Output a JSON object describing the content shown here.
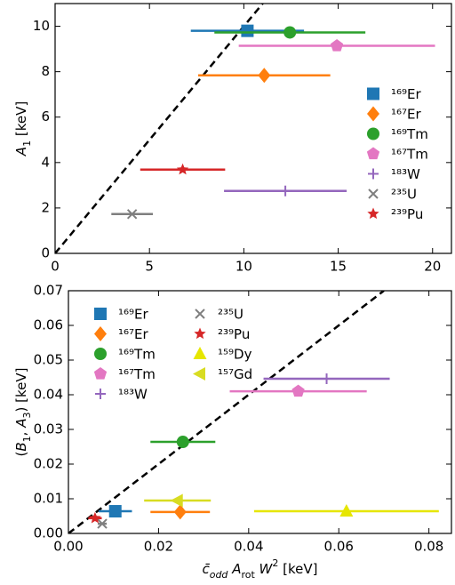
{
  "chart_data": [
    {
      "type": "errorbar-scatter",
      "xlabel": [
        {
          "text": "c̄",
          "style": "italic"
        },
        {
          "text": "odd",
          "style": "sub-italic"
        },
        {
          "text": " A",
          "style": "italic"
        },
        {
          "text": "rot",
          "style": "sub"
        },
        {
          "text": " W",
          "style": "italic"
        },
        {
          "text": "2",
          "style": "sup"
        },
        {
          "text": " [keV]"
        }
      ],
      "ylabel": [
        {
          "text": "A",
          "style": "italic"
        },
        {
          "text": "1",
          "style": "sub"
        },
        {
          "text": " [keV]"
        }
      ],
      "xlim": [
        0,
        21
      ],
      "ylim": [
        0,
        11
      ],
      "xticks": [
        0,
        5,
        10,
        15,
        20
      ],
      "yticks": [
        0,
        2,
        4,
        6,
        8,
        10
      ],
      "show_xlabel": false,
      "reference_line": {
        "x": [
          0,
          11
        ],
        "y": [
          0,
          11
        ]
      },
      "legend_loc": "lower right",
      "legend_ncol": 1,
      "series": [
        {
          "name": "¹⁶⁹Er",
          "color": "#1f77b4",
          "marker": "square",
          "x": [
            10.19
          ],
          "values": [
            9.8
          ],
          "xerr": [
            3.0
          ]
        },
        {
          "name": "¹⁶⁷Er",
          "color": "#ff7f0e",
          "marker": "diamond",
          "x": [
            11.08
          ],
          "values": [
            7.84
          ],
          "xerr": [
            3.5
          ]
        },
        {
          "name": "¹⁶⁹Tm",
          "color": "#2ca02c",
          "marker": "circle",
          "x": [
            12.44
          ],
          "values": [
            9.73
          ],
          "xerr": [
            4.0
          ]
        },
        {
          "name": "¹⁶⁷Tm",
          "color": "#e377c2",
          "marker": "pentagon",
          "x": [
            14.93
          ],
          "values": [
            9.14
          ],
          "xerr": [
            5.2
          ]
        },
        {
          "name": "¹⁸³W",
          "color": "#9467bd",
          "marker": "plus",
          "x": [
            12.2
          ],
          "values": [
            2.75
          ],
          "xerr": [
            3.25
          ]
        },
        {
          "name": "²³⁵U",
          "color": "#7f7f7f",
          "marker": "x",
          "x": [
            4.08
          ],
          "values": [
            1.73
          ],
          "xerr": [
            1.1
          ]
        },
        {
          "name": "²³⁹Pu",
          "color": "#d62728",
          "marker": "star",
          "x": [
            6.76
          ],
          "values": [
            3.69
          ],
          "xerr": [
            2.25
          ]
        }
      ]
    },
    {
      "type": "errorbar-scatter",
      "xlabel": [
        {
          "text": "c̄",
          "style": "italic"
        },
        {
          "text": "odd",
          "style": "sub-italic"
        },
        {
          "text": " A",
          "style": "italic"
        },
        {
          "text": "rot",
          "style": "sub"
        },
        {
          "text": " W",
          "style": "italic"
        },
        {
          "text": "2",
          "style": "sup"
        },
        {
          "text": " [keV]"
        }
      ],
      "ylabel": [
        {
          "text": "("
        },
        {
          "text": "B",
          "style": "italic"
        },
        {
          "text": "1",
          "style": "sub"
        },
        {
          "text": ", "
        },
        {
          "text": "A",
          "style": "italic"
        },
        {
          "text": "3",
          "style": "sub"
        },
        {
          "text": ") [keV]"
        }
      ],
      "xlim": [
        0,
        0.085
      ],
      "ylim": [
        0,
        0.07
      ],
      "xticks": [
        {
          "value": 0,
          "label": "0.00"
        },
        {
          "value": 0.02,
          "label": "0.02"
        },
        {
          "value": 0.04,
          "label": "0.04"
        },
        {
          "value": 0.06,
          "label": "0.06"
        },
        {
          "value": 0.08,
          "label": "0.08"
        }
      ],
      "yticks": [
        {
          "value": 0,
          "label": "0.00"
        },
        {
          "value": 0.01,
          "label": "0.01"
        },
        {
          "value": 0.02,
          "label": "0.02"
        },
        {
          "value": 0.03,
          "label": "0.03"
        },
        {
          "value": 0.04,
          "label": "0.04"
        },
        {
          "value": 0.05,
          "label": "0.05"
        },
        {
          "value": 0.06,
          "label": "0.06"
        },
        {
          "value": 0.07,
          "label": "0.07"
        }
      ],
      "show_xlabel": true,
      "reference_line": {
        "x": [
          0,
          0.07
        ],
        "y": [
          0,
          0.07
        ]
      },
      "legend_loc": "upper left",
      "legend_ncol": 2,
      "series": [
        {
          "name": "¹⁶⁹Er",
          "color": "#1f77b4",
          "marker": "square",
          "x": [
            0.0104
          ],
          "values": [
            0.0064
          ],
          "xerr": [
            0.0037
          ]
        },
        {
          "name": "¹⁶⁷Er",
          "color": "#ff7f0e",
          "marker": "diamond",
          "x": [
            0.0248
          ],
          "values": [
            0.0062
          ],
          "xerr": [
            0.0066
          ]
        },
        {
          "name": "¹⁶⁹Tm",
          "color": "#2ca02c",
          "marker": "circle",
          "x": [
            0.0254
          ],
          "values": [
            0.0264
          ],
          "xerr": [
            0.0072
          ]
        },
        {
          "name": "¹⁶⁷Tm",
          "color": "#e377c2",
          "marker": "pentagon",
          "x": [
            0.051
          ],
          "values": [
            0.041
          ],
          "xerr": [
            0.0152
          ]
        },
        {
          "name": "¹⁸³W",
          "color": "#9467bd",
          "marker": "plus",
          "x": [
            0.0573
          ],
          "values": [
            0.0446
          ],
          "xerr": [
            0.014
          ]
        },
        {
          "name": "²³⁵U",
          "color": "#7f7f7f",
          "marker": "x",
          "x": [
            0.0075
          ],
          "values": [
            0.0028
          ],
          "xerr": [
            0.001
          ]
        },
        {
          "name": "²³⁹Pu",
          "color": "#d62728",
          "marker": "star",
          "x": [
            0.0059
          ],
          "values": [
            0.0044
          ],
          "xerr": [
            0.0015
          ]
        },
        {
          "name": "¹⁵⁹Dy",
          "color": "#e6e600",
          "marker": "triangle-up",
          "x": [
            0.0617
          ],
          "values": [
            0.0064
          ],
          "xerr": [
            0.0205
          ]
        },
        {
          "name": "¹⁵⁷Gd",
          "color": "#d8dc22",
          "marker": "triangle-left",
          "x": [
            0.0242
          ],
          "values": [
            0.0095
          ],
          "xerr": [
            0.0074
          ]
        }
      ]
    }
  ]
}
